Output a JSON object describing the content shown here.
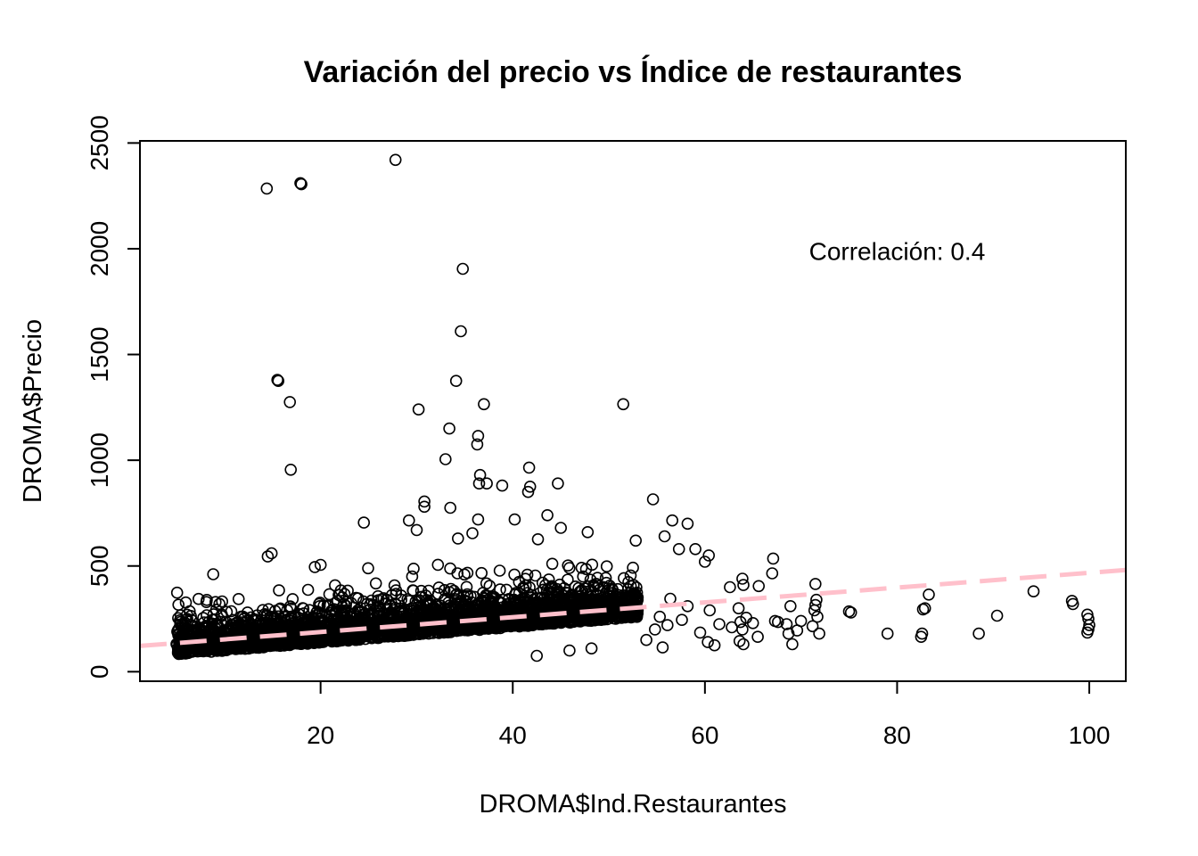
{
  "chart_data": {
    "type": "scatter",
    "title": "Variación del precio vs Índice de restaurantes",
    "xlabel": "DROMA$Ind.Restaurantes",
    "ylabel": "DROMA$Precio",
    "xlim": [
      1.2,
      103.8
    ],
    "ylim": [
      -45,
      2510
    ],
    "x_ticks": [
      20,
      40,
      60,
      80,
      100
    ],
    "x_tick_labels": [
      "20",
      "40",
      "60",
      "80",
      "100"
    ],
    "y_ticks": [
      0,
      500,
      1000,
      1500,
      2000,
      2500
    ],
    "y_tick_labels": [
      "0",
      "500",
      "1000",
      "1500",
      "2000",
      "2500"
    ],
    "grid": false,
    "annotation": {
      "text": "Correlación: 0.4",
      "x": 80,
      "y": 1990
    },
    "colors": {
      "points": "#000000",
      "trendline": "#FFC0CB",
      "axes": "#000000"
    },
    "trendline": {
      "style": "dashed",
      "x": [
        1.2,
        103.8
      ],
      "y": [
        122,
        481
      ]
    },
    "outliers": [
      {
        "x": 27.8,
        "y": 2420
      },
      {
        "x": 14.4,
        "y": 2285
      },
      {
        "x": 18.0,
        "y": 2305
      },
      {
        "x": 17.9,
        "y": 2310
      },
      {
        "x": 34.8,
        "y": 1905
      },
      {
        "x": 34.6,
        "y": 1610
      },
      {
        "x": 15.5,
        "y": 1380
      },
      {
        "x": 15.6,
        "y": 1375
      },
      {
        "x": 34.1,
        "y": 1375
      },
      {
        "x": 16.8,
        "y": 1275
      },
      {
        "x": 37.0,
        "y": 1265
      },
      {
        "x": 51.5,
        "y": 1265
      },
      {
        "x": 30.2,
        "y": 1240
      },
      {
        "x": 33.4,
        "y": 1150
      },
      {
        "x": 36.4,
        "y": 1115
      },
      {
        "x": 36.3,
        "y": 1075
      },
      {
        "x": 33.0,
        "y": 1005
      },
      {
        "x": 41.7,
        "y": 965
      },
      {
        "x": 16.9,
        "y": 955
      },
      {
        "x": 36.6,
        "y": 930
      },
      {
        "x": 36.5,
        "y": 890
      },
      {
        "x": 37.3,
        "y": 890
      },
      {
        "x": 44.7,
        "y": 890
      },
      {
        "x": 38.9,
        "y": 880
      },
      {
        "x": 41.8,
        "y": 875
      },
      {
        "x": 41.6,
        "y": 850
      },
      {
        "x": 54.6,
        "y": 815
      },
      {
        "x": 30.8,
        "y": 805
      },
      {
        "x": 30.8,
        "y": 780
      },
      {
        "x": 33.5,
        "y": 775
      },
      {
        "x": 56.6,
        "y": 715
      },
      {
        "x": 58.2,
        "y": 700
      },
      {
        "x": 24.5,
        "y": 705
      },
      {
        "x": 29.2,
        "y": 715
      },
      {
        "x": 36.4,
        "y": 720
      },
      {
        "x": 40.2,
        "y": 720
      },
      {
        "x": 43.6,
        "y": 740
      },
      {
        "x": 30.0,
        "y": 670
      },
      {
        "x": 35.8,
        "y": 655
      },
      {
        "x": 45.0,
        "y": 680
      },
      {
        "x": 47.8,
        "y": 660
      },
      {
        "x": 55.8,
        "y": 640
      },
      {
        "x": 34.3,
        "y": 630
      },
      {
        "x": 52.8,
        "y": 620
      },
      {
        "x": 14.5,
        "y": 545
      },
      {
        "x": 14.9,
        "y": 560
      },
      {
        "x": 20.0,
        "y": 505
      },
      {
        "x": 19.4,
        "y": 495
      },
      {
        "x": 60.0,
        "y": 520
      },
      {
        "x": 60.4,
        "y": 550
      },
      {
        "x": 57.3,
        "y": 580
      },
      {
        "x": 59.0,
        "y": 580
      },
      {
        "x": 67.1,
        "y": 535
      },
      {
        "x": 67.0,
        "y": 465
      },
      {
        "x": 63.9,
        "y": 440
      },
      {
        "x": 64.0,
        "y": 410
      },
      {
        "x": 65.6,
        "y": 405
      },
      {
        "x": 62.6,
        "y": 400
      },
      {
        "x": 71.5,
        "y": 415
      },
      {
        "x": 83.3,
        "y": 365
      },
      {
        "x": 94.2,
        "y": 380
      },
      {
        "x": 98.2,
        "y": 335
      },
      {
        "x": 98.3,
        "y": 320
      },
      {
        "x": 99.8,
        "y": 270
      },
      {
        "x": 99.9,
        "y": 250
      },
      {
        "x": 100.0,
        "y": 220
      },
      {
        "x": 99.9,
        "y": 200
      },
      {
        "x": 99.8,
        "y": 185
      },
      {
        "x": 90.4,
        "y": 265
      },
      {
        "x": 88.5,
        "y": 180
      },
      {
        "x": 79.0,
        "y": 180
      },
      {
        "x": 82.5,
        "y": 165
      },
      {
        "x": 82.6,
        "y": 180
      },
      {
        "x": 82.9,
        "y": 300
      },
      {
        "x": 82.7,
        "y": 295
      },
      {
        "x": 75.2,
        "y": 280
      },
      {
        "x": 75.0,
        "y": 285
      },
      {
        "x": 71.6,
        "y": 340
      },
      {
        "x": 71.5,
        "y": 315
      },
      {
        "x": 71.4,
        "y": 290
      },
      {
        "x": 71.7,
        "y": 260
      },
      {
        "x": 71.2,
        "y": 215
      },
      {
        "x": 71.9,
        "y": 180
      },
      {
        "x": 70.0,
        "y": 240
      },
      {
        "x": 69.6,
        "y": 195
      },
      {
        "x": 69.1,
        "y": 130
      },
      {
        "x": 68.7,
        "y": 180
      },
      {
        "x": 68.5,
        "y": 225
      },
      {
        "x": 67.6,
        "y": 235
      },
      {
        "x": 67.3,
        "y": 240
      },
      {
        "x": 68.9,
        "y": 310
      },
      {
        "x": 65.0,
        "y": 230
      },
      {
        "x": 65.5,
        "y": 165
      },
      {
        "x": 64.0,
        "y": 130
      },
      {
        "x": 63.6,
        "y": 145
      },
      {
        "x": 63.9,
        "y": 200
      },
      {
        "x": 64.3,
        "y": 255
      },
      {
        "x": 63.5,
        "y": 300
      },
      {
        "x": 63.7,
        "y": 235
      },
      {
        "x": 62.8,
        "y": 210
      },
      {
        "x": 60.5,
        "y": 290
      },
      {
        "x": 61.5,
        "y": 225
      },
      {
        "x": 58.2,
        "y": 310
      },
      {
        "x": 56.4,
        "y": 345
      },
      {
        "x": 55.3,
        "y": 260
      },
      {
        "x": 54.8,
        "y": 200
      },
      {
        "x": 56.1,
        "y": 220
      },
      {
        "x": 57.6,
        "y": 245
      },
      {
        "x": 59.5,
        "y": 185
      },
      {
        "x": 60.3,
        "y": 140
      },
      {
        "x": 61.0,
        "y": 125
      },
      {
        "x": 55.6,
        "y": 115
      },
      {
        "x": 53.9,
        "y": 150
      },
      {
        "x": 42.5,
        "y": 75
      },
      {
        "x": 48.2,
        "y": 110
      },
      {
        "x": 45.9,
        "y": 100
      }
    ],
    "cloud": {
      "n": 3000,
      "x_range": [
        5,
        53
      ],
      "base_intercept": 90,
      "base_slope": 3.7,
      "spread": 110,
      "min_y": 40
    }
  }
}
